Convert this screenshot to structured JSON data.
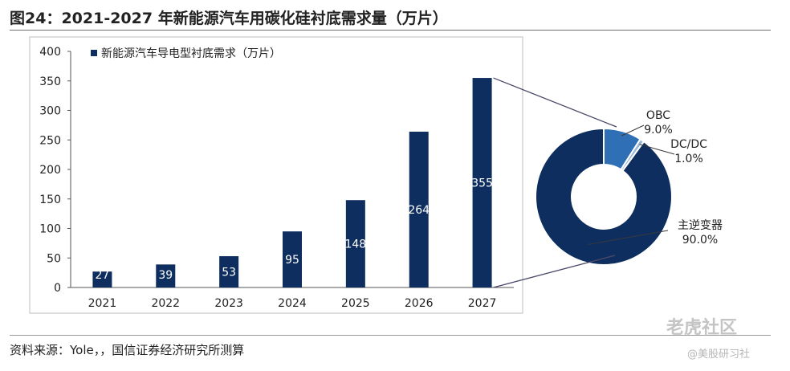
{
  "title": "图24：2021-2027 年新能源汽车用碳化硅衬底需求量（万片）",
  "source": "资料来源：Yole，，国信证券经济研究所测算",
  "watermark": {
    "brand": "老虎社区",
    "handle": "@美股研习社"
  },
  "chart_data": [
    {
      "type": "bar",
      "categories": [
        "2021",
        "2022",
        "2023",
        "2024",
        "2025",
        "2026",
        "2027"
      ],
      "series": [
        {
          "name": "新能源汽车导电型衬底需求（万片）",
          "values": [
            27,
            39,
            53,
            95,
            148,
            264,
            355
          ]
        }
      ],
      "data_labels": [
        "27",
        "39",
        "53",
        "95",
        "148",
        "264",
        "355"
      ],
      "ylim": [
        0,
        400
      ],
      "yticks": [
        0,
        50,
        100,
        150,
        200,
        250,
        300,
        350,
        400
      ],
      "grid": false,
      "legend_position": "top-left",
      "color": "#0d2e5f"
    },
    {
      "type": "pie",
      "donut": true,
      "slices": [
        {
          "name": "主逆变器",
          "value": 90.0,
          "label": "90.0%",
          "color": "#0d2e5f"
        },
        {
          "name": "OBC",
          "value": 9.0,
          "label": "9.0%",
          "color": "#2f6fb6"
        },
        {
          "name": "DC/DC",
          "value": 1.0,
          "label": "1.0%",
          "color": "#9db8d9"
        }
      ]
    }
  ]
}
